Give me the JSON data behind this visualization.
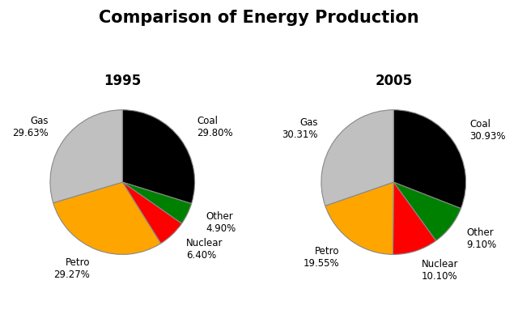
{
  "title": "Comparison of Energy Production",
  "title_fontsize": 15,
  "title_fontweight": "bold",
  "year1": "1995",
  "year2": "2005",
  "year_fontsize": 12,
  "year_fontweight": "bold",
  "year_color": "#000000",
  "categories": [
    "Coal",
    "Other",
    "Nuclear",
    "Petro",
    "Gas"
  ],
  "values_1995": [
    29.8,
    4.9,
    6.4,
    29.27,
    29.63
  ],
  "values_2005": [
    30.93,
    9.1,
    10.1,
    19.55,
    30.31
  ],
  "labels_1995": [
    "Coal\n29.80%",
    "Other\n4.90%",
    "Nuclear\n6.40%",
    "Petro\n29.27%",
    "Gas\n29.63%"
  ],
  "labels_2005": [
    "Coal\n30.93%",
    "Other\n9.10%",
    "Nuclear\n10.10%",
    "Petro\n19.55%",
    "Gas\n30.31%"
  ],
  "colors": [
    "#000000",
    "#008000",
    "#FF0000",
    "#FFA500",
    "#C0C0C0"
  ],
  "startangle": 90,
  "label_fontsize": 8.5,
  "background_color": "#FFFFFF",
  "label_distance": 1.28
}
